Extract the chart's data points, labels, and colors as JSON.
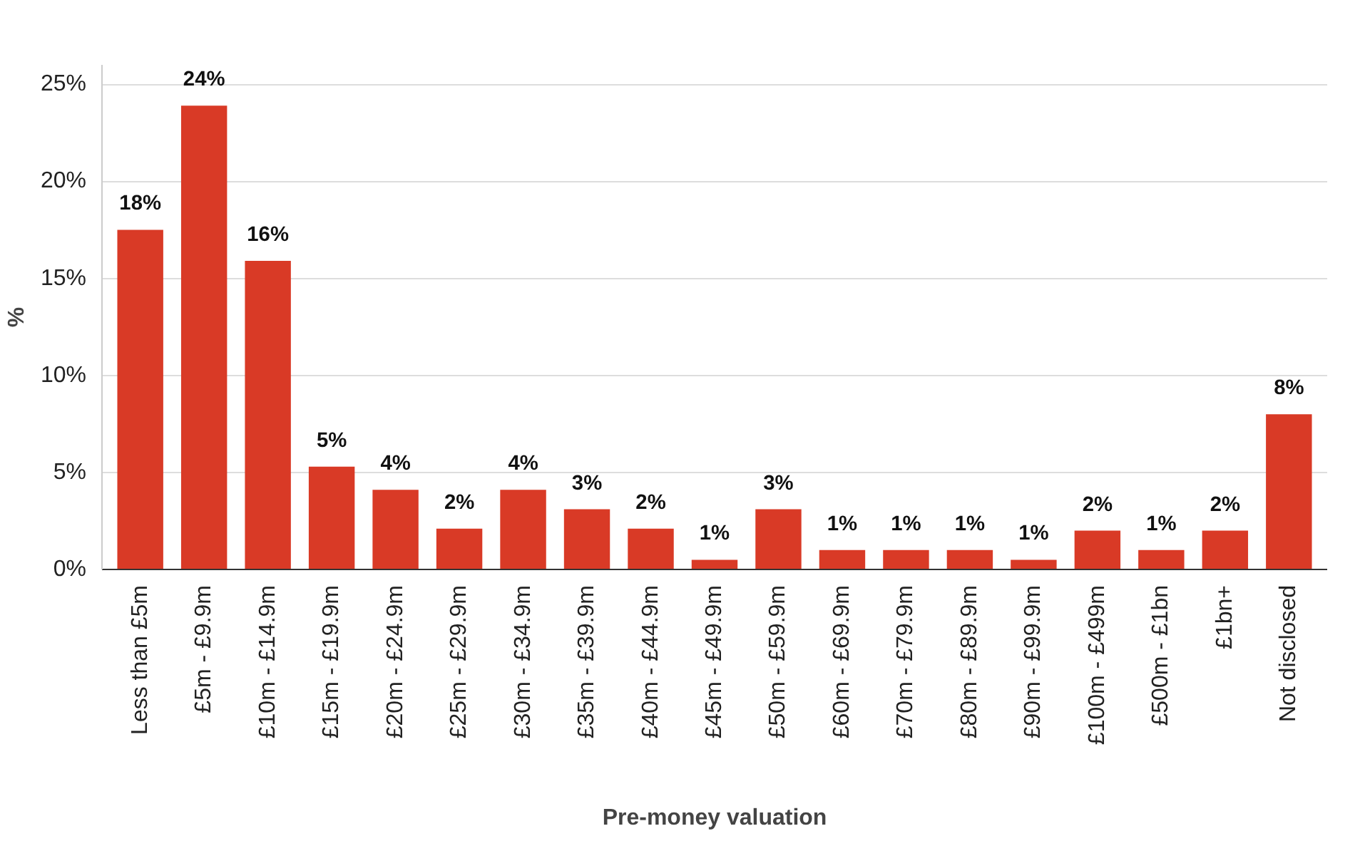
{
  "chart_data": {
    "type": "bar",
    "xlabel": "Pre-money valuation",
    "ylabel": "%",
    "categories": [
      "Less than £5m",
      "£5m - £9.9m",
      "£10m - £14.9m",
      "£15m - £19.9m",
      "£20m - £24.9m",
      "£25m - £29.9m",
      "£30m - £34.9m",
      "£35m - £39.9m",
      "£40m - £44.9m",
      "£45m - £49.9m",
      "£50m - £59.9m",
      "£60m - £69.9m",
      "£70m - £79.9m",
      "£80m - £89.9m",
      "£90m - £99.9m",
      "£100m - £499m",
      "£500m - £1bn",
      "£1bn+",
      "Not disclosed"
    ],
    "values": [
      17.5,
      23.9,
      15.9,
      5.3,
      4.1,
      2.1,
      4.1,
      3.1,
      2.1,
      0.5,
      3.1,
      1.0,
      1.0,
      1.0,
      0.5,
      2.0,
      1.0,
      2.0,
      8.0
    ],
    "value_labels": [
      "18%",
      "24%",
      "16%",
      "5%",
      "4%",
      "2%",
      "4%",
      "3%",
      "2%",
      "1%",
      "3%",
      "1%",
      "1%",
      "1%",
      "1%",
      "2%",
      "1%",
      "2%",
      "8%"
    ],
    "color": "#d93a26",
    "ylim": [
      0,
      26
    ],
    "yticks": [
      {
        "value": 0,
        "label": "0%"
      },
      {
        "value": 5,
        "label": "5%"
      },
      {
        "value": 10,
        "label": "10%"
      },
      {
        "value": 15,
        "label": "15%"
      },
      {
        "value": 20,
        "label": "20%"
      },
      {
        "value": 25,
        "label": "25%"
      }
    ],
    "grid": "y"
  }
}
